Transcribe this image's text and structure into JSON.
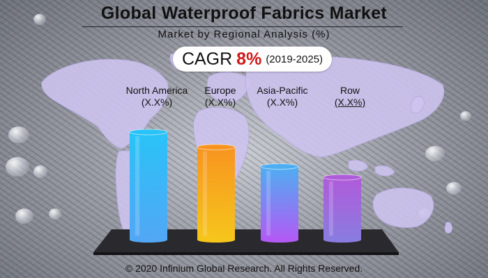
{
  "header": {
    "title": "Global Waterproof Fabrics Market",
    "subtitle": "Market by Regional Analysis (%)"
  },
  "cagr": {
    "label": "CAGR",
    "value": "8%",
    "period": "(2019-2025)"
  },
  "chart_data": {
    "type": "bar",
    "categories": [
      "North America",
      "Europe",
      "Asia-Pacific",
      "Row"
    ],
    "value_labels": [
      "(X.X%)",
      "(X.X%)",
      "(X.X%)",
      "(X.X%)"
    ],
    "values": [
      100,
      86,
      68,
      58
    ],
    "title": "Global Waterproof Fabrics Market",
    "subtitle": "Market by Regional Analysis (%)",
    "xlabel": "",
    "ylabel": "",
    "grid": false,
    "legend": "none",
    "colors": [
      [
        "#29c3f7",
        "#52a7f4"
      ],
      [
        "#f79420",
        "#f6c51b"
      ],
      [
        "#4eaef2",
        "#b15bf4"
      ],
      [
        "#b05bd9",
        "#8a7be0"
      ]
    ]
  },
  "footer": {
    "copyright": "© 2020 Infinium Global Research. All Rights Reserved."
  },
  "colors": {
    "accent": "#d01919",
    "map": "#cdc3ee",
    "platform": "#2a2a2e"
  }
}
